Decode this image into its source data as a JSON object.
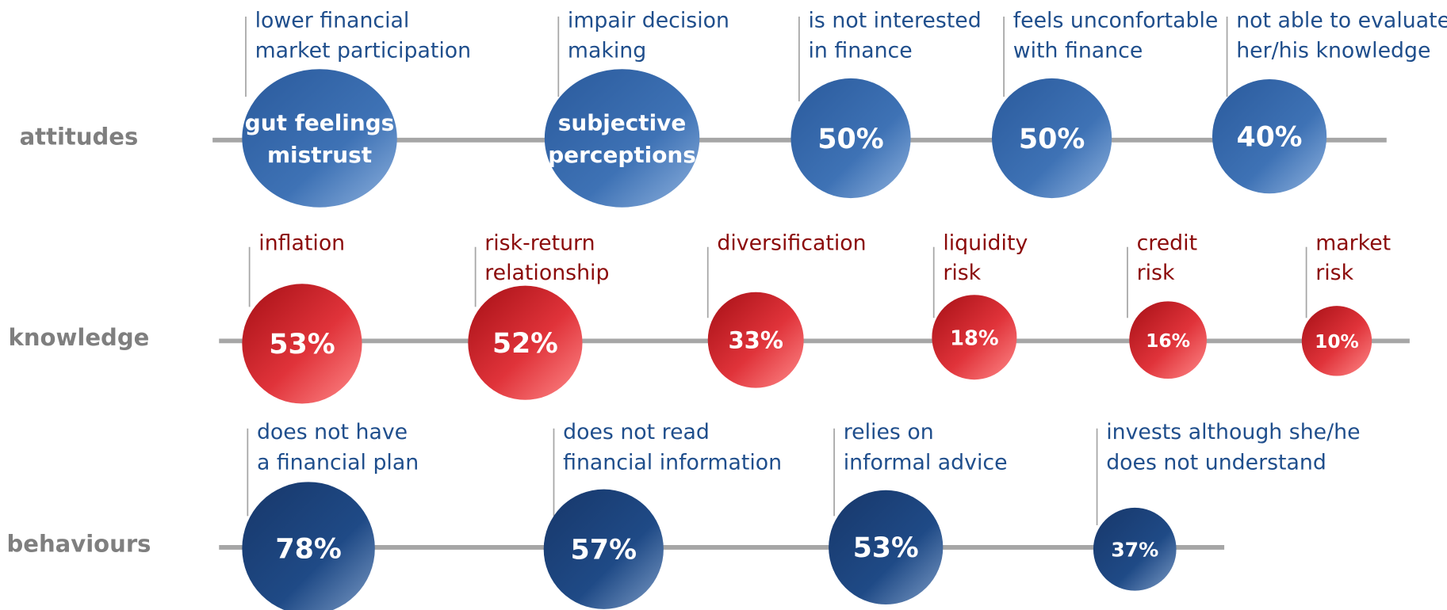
{
  "rows": [
    {
      "label": "attitudes",
      "items": [
        {
          "caption": [
            "lower financial",
            "market participation"
          ],
          "bubble": [
            "gut feelings",
            "mistrust"
          ]
        },
        {
          "caption": [
            "impair decision",
            "making"
          ],
          "bubble": [
            "subjective",
            "perceptions"
          ]
        },
        {
          "caption": [
            "is not interested",
            "in finance"
          ],
          "bubble": [
            "50%"
          ]
        },
        {
          "caption": [
            "feels unconfortable",
            "with finance"
          ],
          "bubble": [
            "50%"
          ]
        },
        {
          "caption": [
            "not able to evaluate",
            "her/his knowledge"
          ],
          "bubble": [
            "40%"
          ]
        }
      ]
    },
    {
      "label": "knowledge",
      "items": [
        {
          "caption": [
            "inflation"
          ],
          "bubble": [
            "53%"
          ]
        },
        {
          "caption": [
            "risk-return",
            "relationship"
          ],
          "bubble": [
            "52%"
          ]
        },
        {
          "caption": [
            "diversification"
          ],
          "bubble": [
            "33%"
          ]
        },
        {
          "caption": [
            "liquidity",
            "risk"
          ],
          "bubble": [
            "18%"
          ]
        },
        {
          "caption": [
            "credit",
            "risk"
          ],
          "bubble": [
            "16%"
          ]
        },
        {
          "caption": [
            "market",
            "risk"
          ],
          "bubble": [
            "10%"
          ]
        }
      ]
    },
    {
      "label": "behaviours",
      "items": [
        {
          "caption": [
            "does not have",
            "a financial plan"
          ],
          "bubble": [
            "78%"
          ]
        },
        {
          "caption": [
            "does not read",
            "financial information"
          ],
          "bubble": [
            "57%"
          ]
        },
        {
          "caption": [
            "relies on",
            "informal advice"
          ],
          "bubble": [
            "53%"
          ]
        },
        {
          "caption": [
            "invests although she/he",
            "does not understand"
          ],
          "bubble": [
            "37%"
          ]
        }
      ]
    }
  ]
}
